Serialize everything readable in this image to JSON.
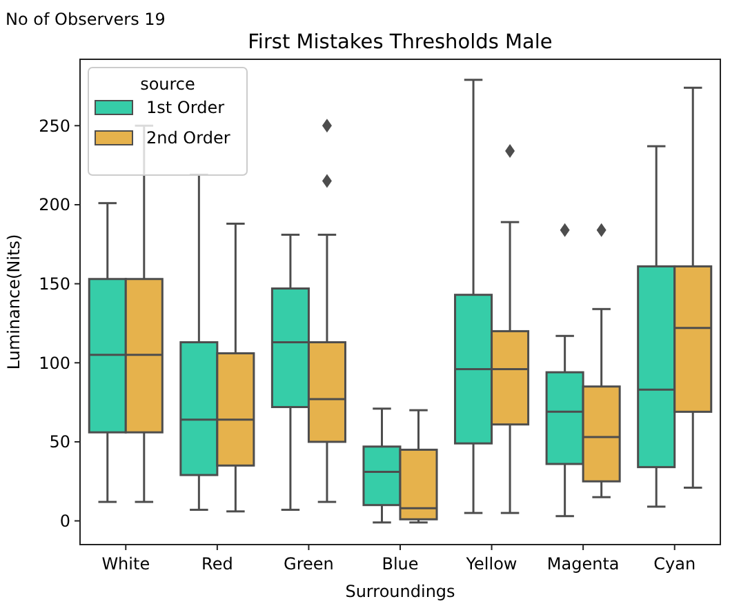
{
  "chart_data": {
    "type": "box",
    "title": "First Mistakes Thresholds Male",
    "annotations": [
      "No of Observers 19"
    ],
    "xlabel": "Surroundings",
    "ylabel": "Luminance(Nits)",
    "legend_title": "source",
    "legend": "top left",
    "grid": false,
    "categories": [
      "White",
      "Red",
      "Green",
      "Blue",
      "Yellow",
      "Magenta",
      "Cyan"
    ],
    "ylim": [
      -15,
      292
    ],
    "yticks": [
      0,
      50,
      100,
      150,
      200,
      250
    ],
    "series": [
      {
        "name": "1st Order",
        "color": "#36cda8",
        "boxes": [
          {
            "low": 12,
            "q1": 56,
            "median": 105,
            "q3": 153,
            "high": 201
          },
          {
            "low": 7,
            "q1": 29,
            "median": 64,
            "q3": 113,
            "high": 219
          },
          {
            "low": 7,
            "q1": 72,
            "median": 113,
            "q3": 147,
            "high": 181
          },
          {
            "low": -1,
            "q1": 10,
            "median": 31,
            "q3": 47,
            "high": 71
          },
          {
            "low": 5,
            "q1": 49,
            "median": 96,
            "q3": 143,
            "high": 279
          },
          {
            "low": 3,
            "q1": 36,
            "median": 69,
            "q3": 94,
            "high": 117,
            "outliers": [
              184
            ]
          },
          {
            "low": 9,
            "q1": 34,
            "median": 83,
            "q3": 161,
            "high": 237
          }
        ]
      },
      {
        "name": "2nd Order",
        "color": "#e6b24c",
        "boxes": [
          {
            "low": 12,
            "q1": 56,
            "median": 105,
            "q3": 153,
            "high": 250
          },
          {
            "low": 6,
            "q1": 35,
            "median": 64,
            "q3": 106,
            "high": 188
          },
          {
            "low": 12,
            "q1": 50,
            "median": 77,
            "q3": 113,
            "high": 181,
            "outliers": [
              215,
              250
            ]
          },
          {
            "low": -1,
            "q1": 1,
            "median": 8,
            "q3": 45,
            "high": 70
          },
          {
            "low": 5,
            "q1": 61,
            "median": 96,
            "q3": 120,
            "high": 189,
            "outliers": [
              234
            ]
          },
          {
            "low": 15,
            "q1": 25,
            "median": 53,
            "q3": 85,
            "high": 134,
            "outliers": [
              184
            ]
          },
          {
            "low": 21,
            "q1": 69,
            "median": 122,
            "q3": 161,
            "high": 274
          }
        ]
      }
    ]
  }
}
